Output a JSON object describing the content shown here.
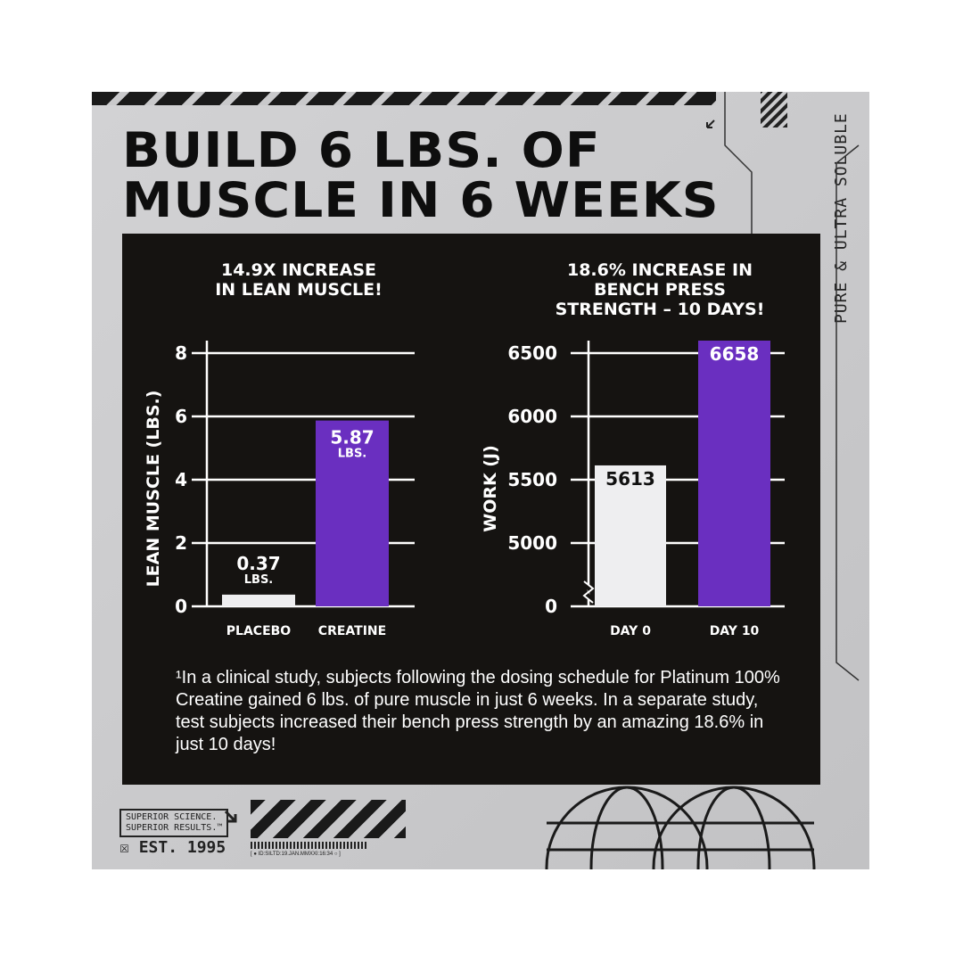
{
  "title_lines": [
    "BUILD 6 LBS. OF",
    "MUSCLE IN 6 WEEKS"
  ],
  "side_text": "PURE & ULTRA SOLUBLE",
  "colors": {
    "placebo": "#eeeef0",
    "creatine": "#6a2fc0",
    "dark_panel": "#151311",
    "gray_panel": "#c9c9cb"
  },
  "chart_data": [
    {
      "type": "bar",
      "title_lines": [
        "14.9X INCREASE",
        "IN LEAN MUSCLE!"
      ],
      "ylabel": "LEAN MUSCLE (LBS.)",
      "categories": [
        "PLACEBO",
        "CREATINE"
      ],
      "values": [
        0.37,
        5.87
      ],
      "data_labels": [
        [
          "0.37",
          "LBS."
        ],
        [
          "5.87",
          "LBS."
        ]
      ],
      "yticks": [
        "0",
        "2",
        "4",
        "6",
        "8"
      ],
      "ylim": [
        0,
        8
      ],
      "grid": true
    },
    {
      "type": "bar",
      "title_lines": [
        "18.6% INCREASE IN",
        "BENCH PRESS",
        "STRENGTH – 10 DAYS!"
      ],
      "ylabel": "WORK (J)",
      "categories": [
        "DAY 0",
        "DAY 10"
      ],
      "values": [
        5613,
        6658
      ],
      "data_labels": [
        [
          "5613"
        ],
        [
          "6658"
        ]
      ],
      "yticks": [
        "0",
        "5000",
        "5500",
        "6000",
        "6500"
      ],
      "ylim": [
        0,
        6500
      ],
      "axis_break": [
        0,
        5000
      ],
      "grid": true
    }
  ],
  "footnote": "¹In a clinical study, subjects following the dosing schedule for Platinum 100% Creatine gained 6 lbs. of pure muscle in just 6 weeks. In a separate study, test subjects increased their bench press strength by an amazing 18.6% in just 10 days!",
  "footer": {
    "tagline_lines": [
      "SUPERIOR SCIENCE.",
      "SUPERIOR RESULTS.™"
    ],
    "est": "EST. 1995",
    "id_text": "[ ● ID:SILTD:19.JAN.MMXXI:16:34 ○ ]"
  }
}
